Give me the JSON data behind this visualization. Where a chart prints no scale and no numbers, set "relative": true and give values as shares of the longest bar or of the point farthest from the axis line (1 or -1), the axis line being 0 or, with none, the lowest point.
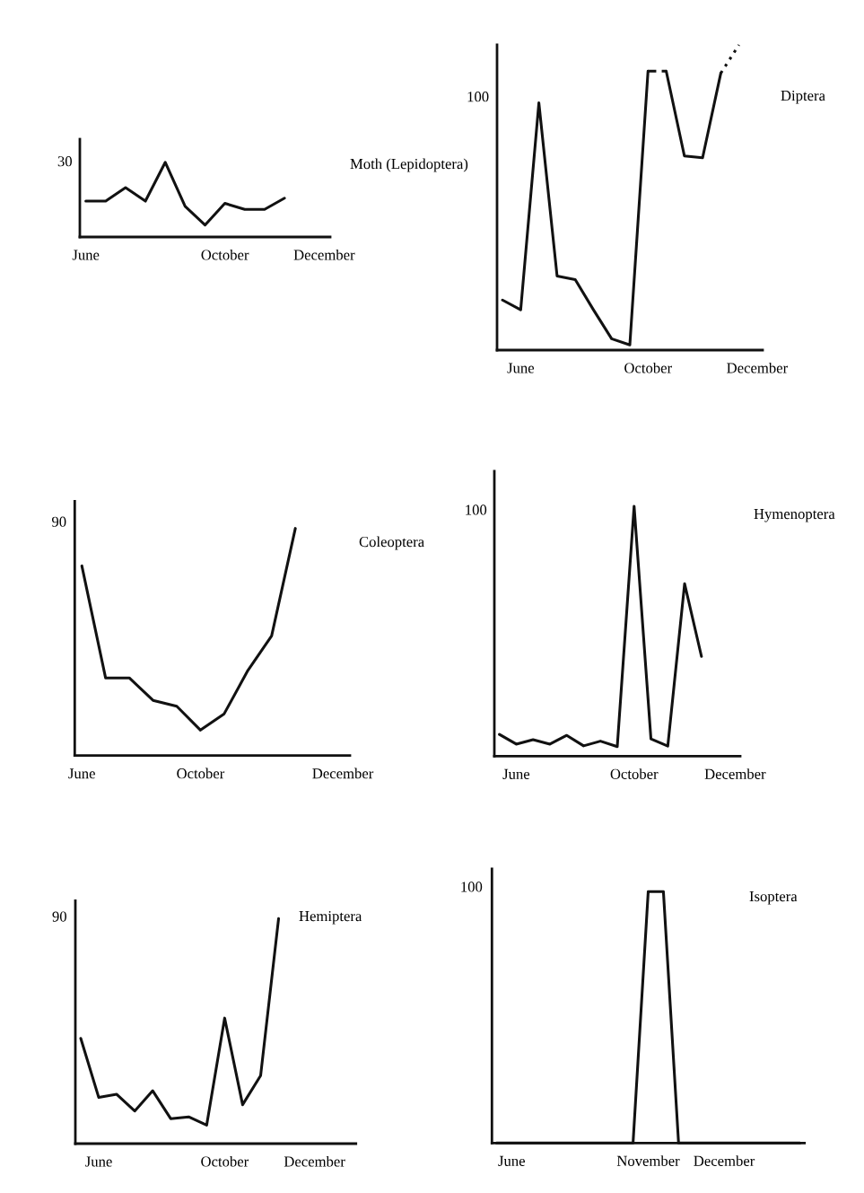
{
  "chart_data": [
    {
      "type": "line",
      "title": "Moth (Lepidoptera)",
      "relative": true,
      "annotations": [
        "30"
      ],
      "categories": [
        "June",
        null,
        null,
        null,
        null,
        null,
        null,
        "October",
        null,
        null,
        null,
        null,
        "December"
      ],
      "series": [
        {
          "color": "#111111",
          "line_style": "solid",
          "values": [
            0.48,
            0.48,
            0.66,
            0.48,
            1,
            0.41,
            0.16,
            0.45,
            0.37,
            0.37,
            0.52,
            null,
            null
          ]
        }
      ]
    },
    {
      "type": "line",
      "title": "Diptera",
      "relative": true,
      "annotations": [
        "100"
      ],
      "categories": [
        null,
        "June",
        null,
        null,
        null,
        null,
        null,
        null,
        "October",
        null,
        null,
        null,
        null,
        null,
        "December"
      ],
      "series": [
        {
          "color": "#111111",
          "line_style": "solid",
          "values": [
            0.164,
            0.132,
            0.81,
            0.243,
            0.231,
            0.132,
            0.037,
            0.017,
            0.914,
            null,
            null,
            null,
            null,
            null,
            null
          ]
        },
        {
          "color": "#111111",
          "line_style": "dashed",
          "values": [
            null,
            null,
            null,
            null,
            null,
            null,
            null,
            null,
            0.914,
            0.914,
            null,
            null,
            null,
            null,
            null
          ]
        },
        {
          "color": "#111111",
          "line_style": "solid",
          "values": [
            null,
            null,
            null,
            null,
            null,
            null,
            null,
            null,
            null,
            0.914,
            0.636,
            0.63,
            0.907,
            null,
            null
          ]
        },
        {
          "color": "#111111",
          "line_style": "dotted",
          "values": [
            null,
            null,
            null,
            null,
            null,
            null,
            null,
            null,
            null,
            null,
            null,
            null,
            0.907,
            1,
            null
          ]
        }
      ]
    },
    {
      "type": "line",
      "title": "Coleoptera",
      "relative": true,
      "annotations": [
        "90"
      ],
      "categories": [
        "June",
        null,
        null,
        null,
        null,
        "October",
        null,
        null,
        null,
        null,
        null,
        "December"
      ],
      "series": [
        {
          "color": "#111111",
          "line_style": "solid",
          "values": [
            0.835,
            0.342,
            0.342,
            0.243,
            0.217,
            0.112,
            0.184,
            0.375,
            0.527,
            1,
            null,
            null
          ]
        }
      ]
    },
    {
      "type": "line",
      "title": "Hymenoptera",
      "relative": true,
      "annotations": [
        "100"
      ],
      "categories": [
        null,
        "June",
        null,
        null,
        null,
        null,
        null,
        null,
        "October",
        null,
        null,
        null,
        null,
        null,
        "December"
      ],
      "series": [
        {
          "color": "#111111",
          "line_style": "solid",
          "values": [
            0.087,
            0.048,
            0.066,
            0.048,
            0.083,
            0.041,
            0.06,
            0.038,
            1,
            0.069,
            0.04,
            0.69,
            0.399,
            null,
            null
          ]
        }
      ]
    },
    {
      "type": "line",
      "title": "Hemiptera",
      "relative": true,
      "annotations": [
        "90"
      ],
      "categories": [
        null,
        "June",
        null,
        null,
        null,
        null,
        null,
        null,
        "October",
        null,
        null,
        null,
        null,
        "December",
        null,
        null
      ],
      "series": [
        {
          "color": "#111111",
          "line_style": "solid",
          "values": [
            0.468,
            0.205,
            0.219,
            0.145,
            0.235,
            0.111,
            0.119,
            0.082,
            0.558,
            0.173,
            0.302,
            1,
            null,
            null,
            null,
            null
          ]
        }
      ]
    },
    {
      "type": "line",
      "title": "Isoptera",
      "relative": true,
      "annotations": [
        "100"
      ],
      "categories": [
        null,
        "June",
        null,
        null,
        null,
        null,
        null,
        null,
        null,
        null,
        "November",
        null,
        null,
        null,
        null,
        "December",
        null,
        null,
        null,
        null,
        null
      ],
      "series": [
        {
          "color": "#111111",
          "line_style": "solid",
          "values": [
            0,
            0,
            0,
            0,
            0,
            0,
            0,
            0,
            0,
            0,
            1,
            1,
            0,
            0,
            0,
            0,
            0,
            0,
            0,
            0,
            0
          ]
        }
      ]
    }
  ]
}
